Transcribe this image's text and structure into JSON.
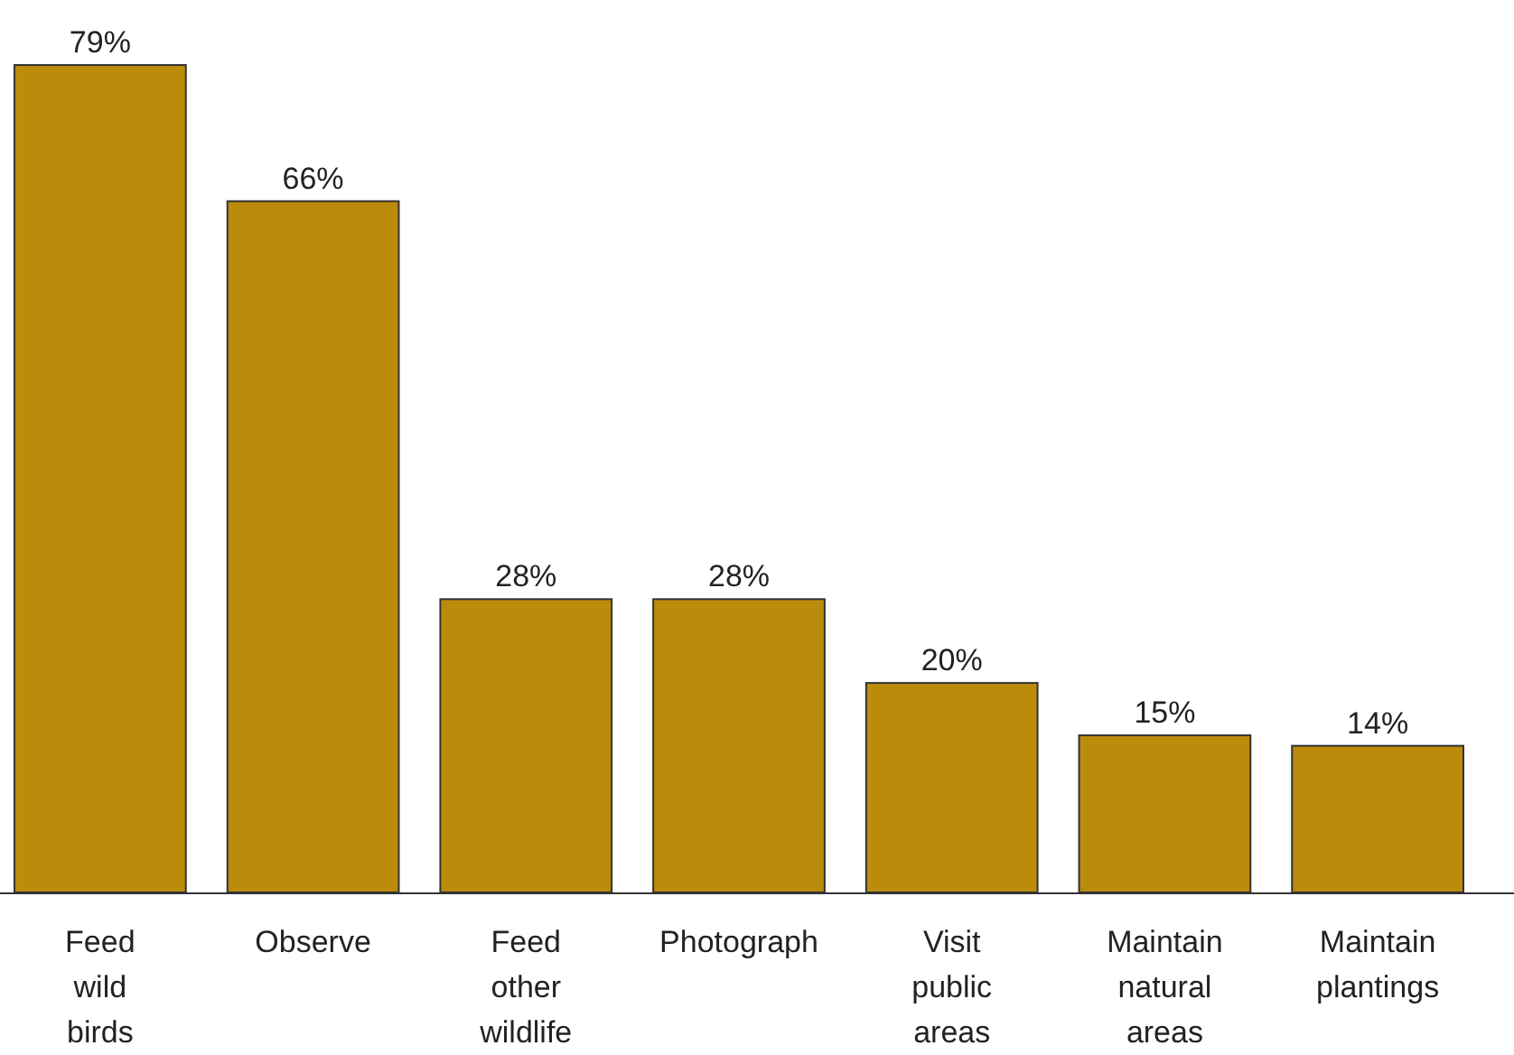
{
  "chart_data": {
    "type": "bar",
    "categories": [
      "Feed wild birds",
      "Observe",
      "Feed other wildlife",
      "Photograph",
      "Visit public areas",
      "Maintain natural areas",
      "Maintain plantings"
    ],
    "values": [
      79,
      66,
      28,
      28,
      20,
      15,
      14
    ],
    "value_labels": [
      "79%",
      "66%",
      "28%",
      "28%",
      "20%",
      "15%",
      "14%"
    ],
    "color": "#bb8b0c"
  }
}
